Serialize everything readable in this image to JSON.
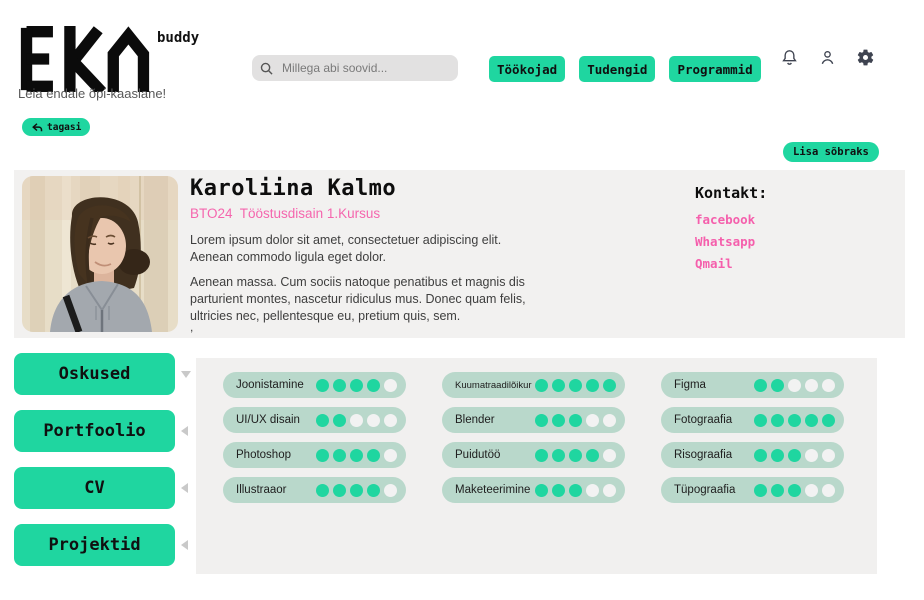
{
  "header": {
    "logo_text": "EKA",
    "logo_sub": "buddy",
    "tagline": "Leia endale õpi-kaaslane!",
    "search_placeholder": "Millega abi soovid...",
    "nav": [
      {
        "label": "Töökojad"
      },
      {
        "label": "Tudengid"
      },
      {
        "label": "Programmid"
      }
    ]
  },
  "back_button_label": "tagasi",
  "add_friend_button_label": "Lisa sõbraks",
  "profile": {
    "name": "Karoliina Kalmo",
    "meta": "BTO24  Tööstusdisain 1.Kursus",
    "bio_p1": "Lorem ipsum dolor sit amet, consectetuer adipiscing elit. Aenean commodo ligula eget dolor.",
    "bio_p2": "Aenean massa. Cum sociis natoque penatibus et magnis dis parturient montes, nascetur ridiculus mus. Donec quam felis, ultricies nec, pellentesque eu, pretium quis, sem.",
    "stray_mark": ",",
    "contact_title": "Kontakt:",
    "contacts": [
      "facebook",
      "Whatsapp",
      "Qmail"
    ]
  },
  "sidebar": {
    "items": [
      {
        "label": "Oskused",
        "state": "expanded"
      },
      {
        "label": "Portfoolio",
        "state": "collapsed"
      },
      {
        "label": "CV",
        "state": "collapsed"
      },
      {
        "label": "Projektid",
        "state": "collapsed"
      }
    ]
  },
  "skills": {
    "max_level": 5,
    "columns": [
      [
        {
          "name": "Joonistamine",
          "level": 4
        },
        {
          "name": "UI/UX disain",
          "level": 2
        },
        {
          "name": "Photoshop",
          "level": 4
        },
        {
          "name": "Illustraaor",
          "level": 4
        }
      ],
      [
        {
          "name": "Kuumatraadilõikur",
          "level": 5
        },
        {
          "name": "Blender",
          "level": 3
        },
        {
          "name": "Puidutöö",
          "level": 4
        },
        {
          "name": "Maketeerimine",
          "level": 3
        }
      ],
      [
        {
          "name": "Figma",
          "level": 2
        },
        {
          "name": "Fotograafia",
          "level": 5
        },
        {
          "name": "Risograafia",
          "level": 3
        },
        {
          "name": "Tüpograafia",
          "level": 3
        }
      ]
    ]
  },
  "colors": {
    "accent_green": "#1fd6a0",
    "pill_background": "#b9d8cb",
    "dot_empty": "#f2f2f2",
    "pink": "#f566ae",
    "card_background": "#f2f1f0"
  }
}
